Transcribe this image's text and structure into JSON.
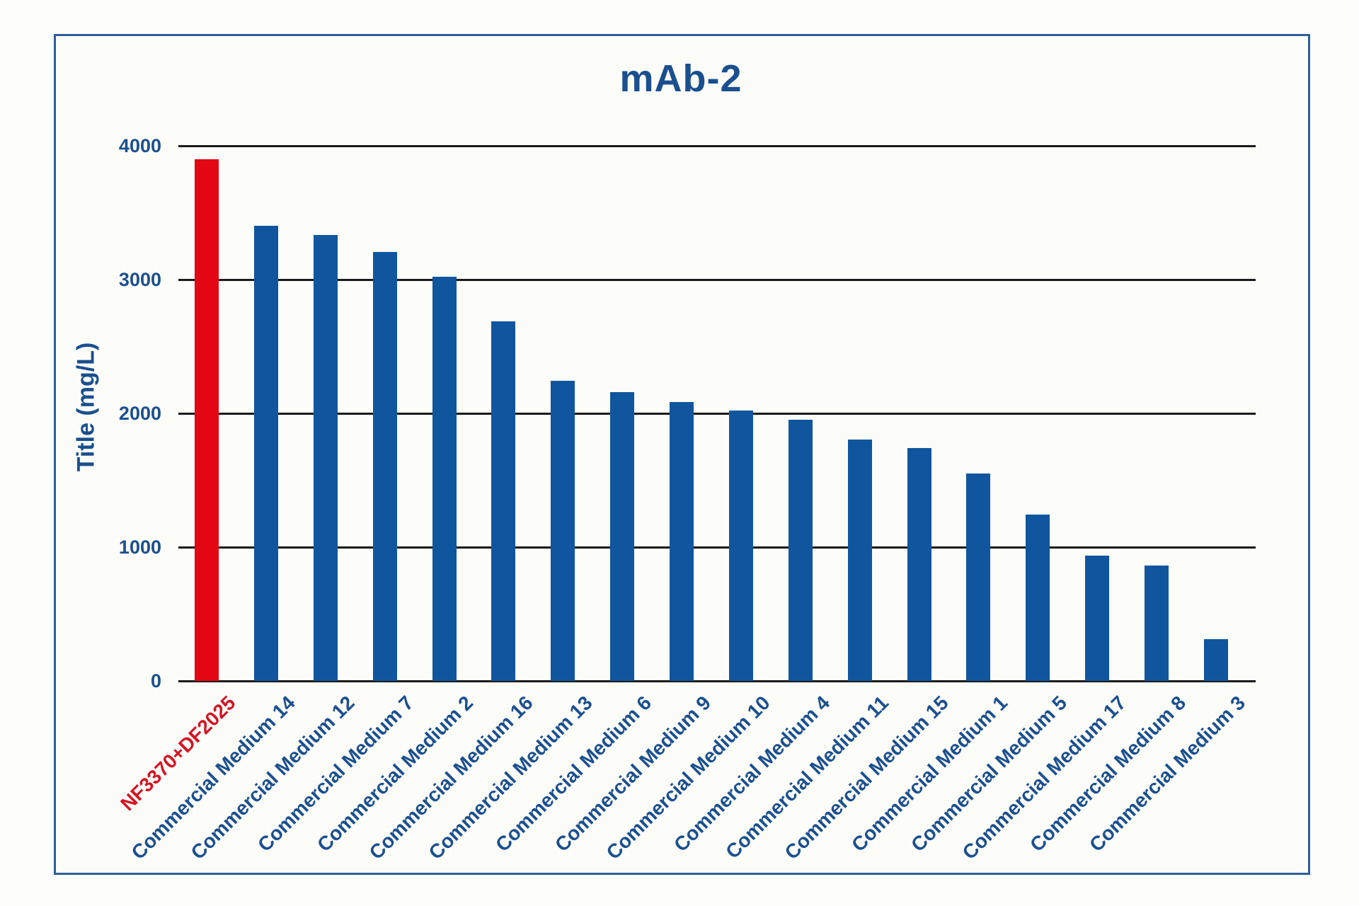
{
  "chart_data": {
    "type": "bar",
    "title": "mAb-2",
    "xlabel": "",
    "ylabel": "Title (mg/L)",
    "ylim": [
      0,
      4000
    ],
    "yticks": [
      0,
      1000,
      2000,
      3000,
      4000
    ],
    "grid": "horizontal",
    "legend": false,
    "categories": [
      "NF3370+DF2025",
      "Commercial Medium 14",
      "Commercial Medium 12",
      "Commercial Medium 7",
      "Commercial Medium 2",
      "Commercial Medium 16",
      "Commercial Medium 13",
      "Commercial Medium 6",
      "Commercial Medium 9",
      "Commercial Medium 10",
      "Commercial Medium 4",
      "Commercial Medium 11",
      "Commercial Medium 15",
      "Commercial Medium 1",
      "Commercial Medium 5",
      "Commercial Medium 17",
      "Commercial Medium 8",
      "Commercial Medium 3"
    ],
    "values": [
      3900,
      3400,
      3335,
      3205,
      3020,
      2690,
      2245,
      2160,
      2085,
      2020,
      1955,
      1805,
      1740,
      1550,
      1245,
      935,
      865,
      310
    ],
    "highlight_index": 0,
    "colors": {
      "highlight_bar": "#e30613",
      "bar": "#0f569e",
      "highlight_label": "#d31423",
      "text": "#1b4f8e",
      "gridline": "#1a1a1a",
      "frame": "#2e5f99"
    }
  }
}
